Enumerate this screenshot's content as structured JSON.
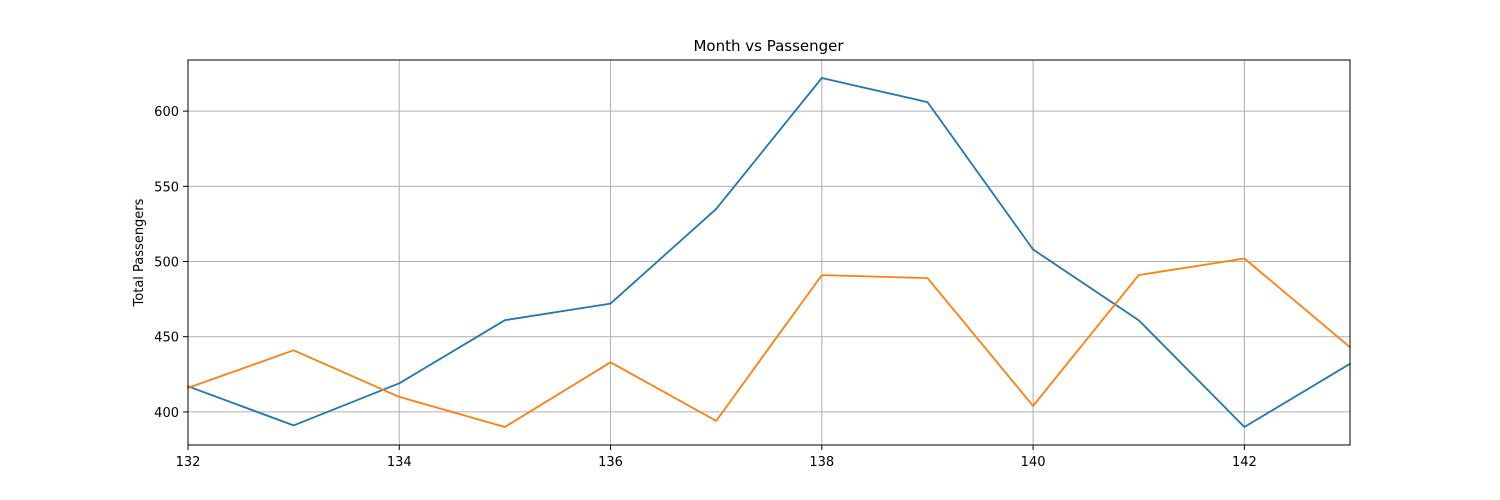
{
  "chart_data": {
    "type": "line",
    "title": "Month vs Passenger",
    "xlabel": "",
    "ylabel": "Total Passengers",
    "x": [
      132,
      133,
      134,
      135,
      136,
      137,
      138,
      139,
      140,
      141,
      142,
      143
    ],
    "xlim": [
      132,
      143
    ],
    "ylim": [
      378,
      634
    ],
    "xticks": [
      132,
      134,
      136,
      138,
      140,
      142
    ],
    "yticks": [
      400,
      450,
      500,
      550,
      600
    ],
    "grid": true,
    "series": [
      {
        "color": "#1f77b4",
        "values": [
          417,
          391,
          419,
          461,
          472,
          535,
          622,
          606,
          508,
          461,
          390,
          432
        ]
      },
      {
        "color": "#ff7f0e",
        "values": [
          416,
          441,
          410,
          390,
          433,
          394,
          491,
          489,
          404,
          491,
          502,
          443
        ]
      }
    ]
  }
}
